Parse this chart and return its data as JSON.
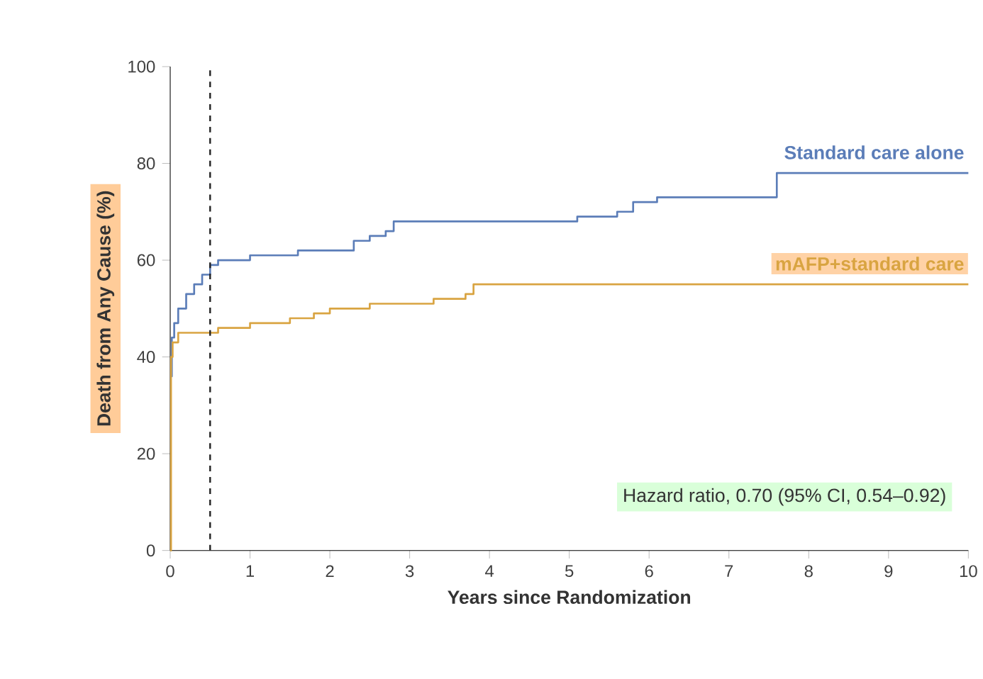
{
  "chart_data": {
    "type": "step",
    "xlabel": "Years since Randomization",
    "ylabel": "Death from Any Cause (%)",
    "xlim": [
      0,
      10
    ],
    "ylim": [
      0,
      100
    ],
    "xticks": [
      0,
      1,
      2,
      3,
      4,
      5,
      6,
      7,
      8,
      9,
      10
    ],
    "yticks": [
      0,
      20,
      40,
      60,
      80,
      100
    ],
    "series": [
      {
        "name": "Standard care alone",
        "color": "#5b7db8",
        "x": [
          0,
          0.02,
          0.05,
          0.1,
          0.2,
          0.3,
          0.4,
          0.5,
          0.6,
          1.0,
          1.6,
          2.3,
          2.5,
          2.7,
          2.8,
          5.1,
          5.6,
          5.8,
          6.1,
          7.6,
          10
        ],
        "values": [
          36,
          44,
          47,
          50,
          53,
          55,
          57,
          59,
          60,
          61,
          62,
          64,
          65,
          66,
          68,
          69,
          70,
          72,
          73,
          78,
          78
        ]
      },
      {
        "name": "mAFP+standard care",
        "color": "#d9a441",
        "x": [
          0,
          0.01,
          0.03,
          0.1,
          0.6,
          1.0,
          1.5,
          1.8,
          2.0,
          2.5,
          3.3,
          3.7,
          3.8,
          10
        ],
        "values": [
          0,
          40,
          43,
          45,
          46,
          47,
          48,
          49,
          50,
          51,
          52,
          53,
          55,
          55
        ]
      }
    ],
    "ref_lines": [
      {
        "axis": "x",
        "value": 0.5,
        "line_style": "dashed",
        "color": "#222222"
      }
    ],
    "annotations": [
      "Hazard ratio, 0.70 (95% CI, 0.54–0.92)"
    ],
    "grid": false,
    "legend": false,
    "marker": "none",
    "line_style": "solid"
  }
}
